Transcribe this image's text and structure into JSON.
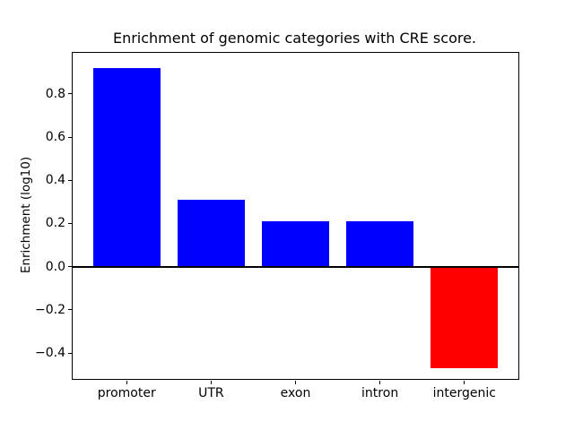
{
  "figure": {
    "background": "#ffffff",
    "frame_color": "#000000"
  },
  "chart_data": {
    "type": "bar",
    "title": "Enrichment of genomic categories with CRE score.",
    "xlabel": "",
    "ylabel": "Enrichment (log10)",
    "categories": [
      "promoter",
      "UTR",
      "exon",
      "intron",
      "intergenic"
    ],
    "values": [
      0.92,
      0.31,
      0.21,
      0.21,
      -0.47
    ],
    "bar_colors": [
      "#0000ff",
      "#0000ff",
      "#0000ff",
      "#0000ff",
      "#ff0000"
    ],
    "positive_color": "#0000ff",
    "negative_color": "#ff0000",
    "bar_width": 0.8,
    "ylim": [
      -0.52,
      0.99
    ],
    "xlim": [
      -0.64,
      4.64
    ],
    "yticks": [
      {
        "value": -0.4,
        "label": "−0.4"
      },
      {
        "value": -0.2,
        "label": "−0.2"
      },
      {
        "value": 0.0,
        "label": "0.0"
      },
      {
        "value": 0.2,
        "label": "0.2"
      },
      {
        "value": 0.4,
        "label": "0.4"
      },
      {
        "value": 0.6,
        "label": "0.6"
      },
      {
        "value": 0.8,
        "label": "0.8"
      }
    ],
    "zero_line": {
      "value": 0.0,
      "color": "#000000"
    },
    "grid": false,
    "legend": null
  }
}
